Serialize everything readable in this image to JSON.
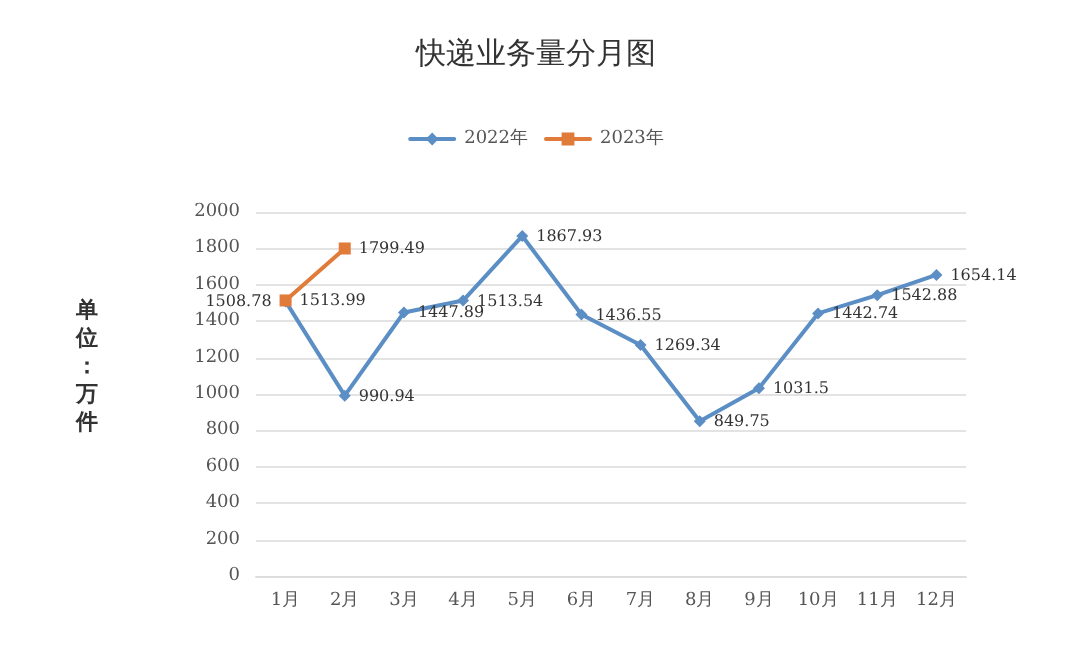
{
  "chart_data": {
    "type": "line",
    "title": "快递业务量分月图",
    "ylabel": "单位：万件",
    "categories": [
      "1月",
      "2月",
      "3月",
      "4月",
      "5月",
      "6月",
      "7月",
      "8月",
      "9月",
      "10月",
      "11月",
      "12月"
    ],
    "series": [
      {
        "name": "2022年",
        "color": "#5b8ec4",
        "marker": "diamond",
        "values": [
          1508.78,
          990.94,
          1447.89,
          1513.54,
          1867.93,
          1436.55,
          1269.34,
          849.75,
          1031.5,
          1442.74,
          1542.88,
          1654.14
        ]
      },
      {
        "name": "2023年",
        "color": "#e07b39",
        "marker": "square",
        "values": [
          1513.99,
          1799.49,
          null,
          null,
          null,
          null,
          null,
          null,
          null,
          null,
          null,
          null
        ]
      }
    ],
    "ylim": [
      0,
      2000
    ],
    "yticks": [
      0,
      200,
      400,
      600,
      800,
      1000,
      1200,
      1400,
      1600,
      1800,
      2000
    ],
    "grid": "y",
    "legend": "top",
    "data_labels": true
  }
}
